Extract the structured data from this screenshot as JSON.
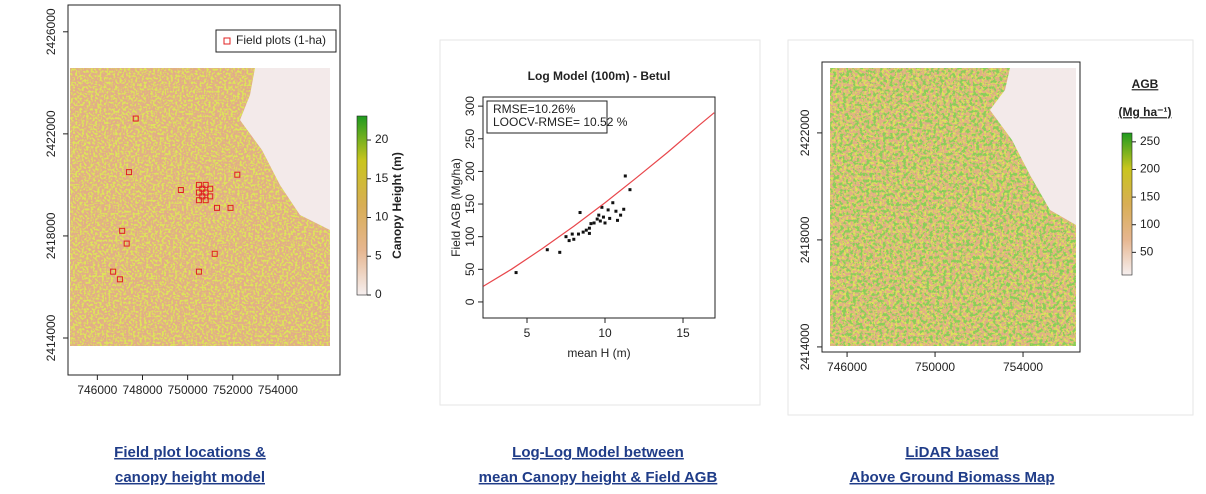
{
  "chart_data": [
    {
      "type": "map",
      "xlim": [
        744700,
        756750
      ],
      "xticks": [
        746000,
        748000,
        750000,
        752000,
        754000
      ],
      "ylim": [
        2412550,
        2427050
      ],
      "yticks": [
        2414000,
        2418000,
        2422000,
        2426000
      ],
      "legend": "top-right",
      "series": [
        {
          "name": "Field plots (1-ha)",
          "color": "#e02020",
          "x": [
            747700,
            747400,
            749700,
            752200,
            751300,
            751900,
            747100,
            747300,
            751200,
            750500,
            746700,
            747000,
            750500,
            750800,
            750500,
            750800,
            750650,
            750500,
            750800,
            750650,
            751000,
            751000
          ],
          "y": [
            2422600,
            2420500,
            2419800,
            2420400,
            2419100,
            2419100,
            2418200,
            2417700,
            2417300,
            2416600,
            2416600,
            2416300,
            2420000,
            2420000,
            2419700,
            2419700,
            2419850,
            2419400,
            2419400,
            2419550,
            2419850,
            2419550
          ]
        }
      ],
      "colorbar": {
        "label": "Canopy Height (m)",
        "lim": [
          0,
          23.1
        ],
        "ticks": [
          0,
          5,
          10,
          15,
          20
        ],
        "colors": [
          "#f6efef",
          "#e6b690",
          "#d8ae55",
          "#c9c51e",
          "#1f9a1f"
        ]
      }
    },
    {
      "type": "scatter",
      "title": "Log Model (100m) - Betul",
      "xlabel": "mean H (m)",
      "ylabel": "Field AGB (Mg/ha)",
      "xlim": [
        2.18,
        17.05
      ],
      "xticks": [
        5,
        10,
        15
      ],
      "ylim": [
        -24.6,
        314
      ],
      "yticks": [
        0,
        50,
        100,
        150,
        200,
        250,
        300
      ],
      "annotations": [
        "RMSE=10.26%",
        "LOOCV-RMSE= 10.52 %"
      ],
      "series": [
        {
          "color": "#111111",
          "x": [
            4.3,
            6.3,
            7.1,
            7.5,
            7.7,
            7.9,
            8.0,
            8.3,
            8.4,
            8.6,
            8.8,
            9.0,
            9.1,
            9.3,
            9.5,
            9.6,
            9.7,
            9.9,
            10.0,
            10.2,
            10.3,
            10.5,
            10.7,
            10.8,
            11.0,
            11.2,
            11.3,
            11.6,
            9.8,
            9.0
          ],
          "y": [
            45,
            80,
            76,
            100,
            94,
            104,
            96,
            104,
            137,
            107,
            110,
            113,
            120,
            121,
            127,
            133,
            124,
            130,
            121,
            141,
            128,
            152,
            139,
            125,
            133,
            142,
            193,
            172,
            145,
            105
          ]
        },
        {
          "type": "line",
          "color": "#e8474c",
          "x": [
            2.2,
            4,
            6,
            8,
            10,
            12,
            14,
            16,
            17
          ],
          "y": [
            24,
            50,
            82,
            116,
            152,
            190,
            229,
            270,
            290
          ]
        }
      ]
    },
    {
      "type": "map",
      "xlim": [
        744860,
        756590
      ],
      "xticks": [
        746000,
        750000,
        754000
      ],
      "ylim": [
        2413810,
        2424650
      ],
      "yticks": [
        2414000,
        2418000,
        2422000
      ],
      "colorbar": {
        "title": [
          "AGB",
          "(Mg ha⁻¹)"
        ],
        "lim": [
          9,
          266
        ],
        "ticks": [
          50,
          100,
          150,
          200,
          250
        ],
        "colors": [
          "#f6efef",
          "#e6b690",
          "#d8ae55",
          "#c9c51e",
          "#1f9a1f"
        ]
      }
    }
  ],
  "captions": [
    [
      "Field plot locations &",
      "canopy height model"
    ],
    [
      "Log-Log Model between",
      "mean Canopy height & Field AGB"
    ],
    [
      "LiDAR based",
      "Above Ground Biomass Map"
    ]
  ]
}
